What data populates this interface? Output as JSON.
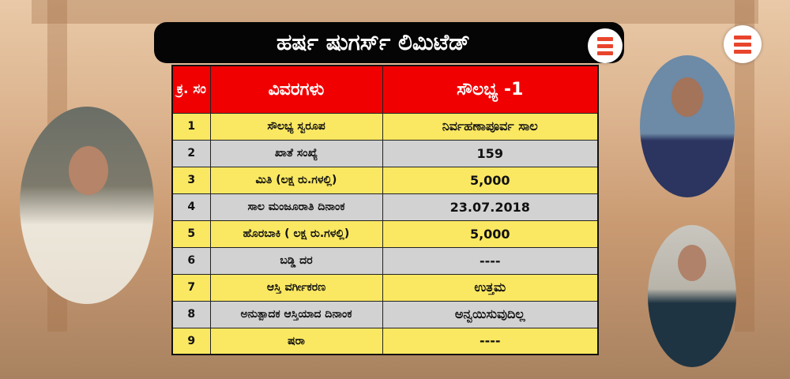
{
  "title": "ಹರ್ಷ ಷುಗರ್ಸ್ ಲಿಮಿಟೆಡ್",
  "brand_color": "#e8452c",
  "table": {
    "headers": [
      "ಕ್ರ. ಸಂ",
      "ವಿವರಗಳು",
      "ಸೌಲಭ್ಯ -1"
    ],
    "rows": [
      {
        "no": "1",
        "label": "ಸೌಲಭ್ಯ ಸ್ವರೂಪ",
        "value": "ನಿರ್ವಹಣಾಪೂರ್ವ ಸಾಲ"
      },
      {
        "no": "2",
        "label": "ಖಾತೆ ಸಂಖ್ಯೆ",
        "value": "159"
      },
      {
        "no": "3",
        "label": "ಮಿತಿ (ಲಕ್ಷ ರು.ಗಳಲ್ಲಿ)",
        "value": "5,000"
      },
      {
        "no": "4",
        "label": "ಸಾಲ ಮಂಜೂರಾತಿ ದಿನಾಂಕ",
        "value": "23.07.2018"
      },
      {
        "no": "5",
        "label": "ಹೊರಬಾಕಿ ( ಲಕ್ಷ ರು.ಗಳಲ್ಲಿ)",
        "value": "5,000"
      },
      {
        "no": "6",
        "label": "ಬಡ್ಡಿ ದರ",
        "value": "----"
      },
      {
        "no": "7",
        "label": "ಆಸ್ತಿ ವರ್ಗೀಕರಣ",
        "value": "ಉತ್ತಮ"
      },
      {
        "no": "8",
        "label": "ಅನುತ್ಪಾದಕ ಆಸ್ತಿಯಾದ ದಿನಾಂಕ",
        "value": "ಅನ್ವಯಿಸುವುದಿಲ್ಲ"
      },
      {
        "no": "9",
        "label": "ಷರಾ",
        "value": "----"
      }
    ]
  }
}
